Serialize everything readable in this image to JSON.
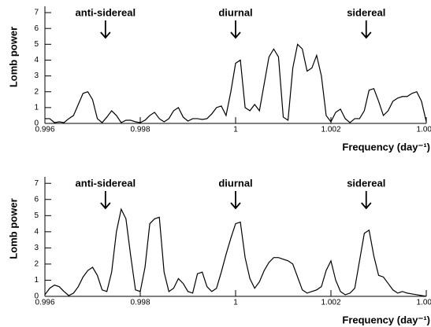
{
  "chart_data": [
    {
      "type": "line",
      "x_label": "Frequency (day⁻¹)",
      "y_label": "Lomb power",
      "color": "#000000",
      "annotations": [
        {
          "text": "anti-sidereal",
          "x": 0.99727
        },
        {
          "text": "diurnal",
          "x": 1
        },
        {
          "text": "sidereal",
          "x": 1.00274
        }
      ],
      "xlim": [
        0.996,
        1.004
      ],
      "xticks": [
        0.996,
        0.998,
        1,
        1.002,
        1.004
      ],
      "ylim": [
        0,
        7.4
      ],
      "yticks": [
        0,
        1,
        2,
        3,
        4,
        5,
        6,
        7
      ],
      "x": [
        0.996,
        0.9961,
        0.9962,
        0.9963,
        0.9964,
        0.9965,
        0.9966,
        0.9967,
        0.9968,
        0.9969,
        0.997,
        0.9971,
        0.9972,
        0.9973,
        0.9974,
        0.9975,
        0.9976,
        0.9977,
        0.9978,
        0.9979,
        0.998,
        0.9981,
        0.9982,
        0.9983,
        0.9984,
        0.9985,
        0.9986,
        0.9987,
        0.9988,
        0.9989,
        0.999,
        0.9991,
        0.9992,
        0.9993,
        0.9994,
        0.9995,
        0.9996,
        0.9997,
        0.9998,
        0.9999,
        1,
        1.0001,
        1.0002,
        1.0003,
        1.0004,
        1.0005,
        1.0006,
        1.0007,
        1.0008,
        1.0009,
        1.001,
        1.0011,
        1.0012,
        1.0013,
        1.0014,
        1.0015,
        1.0016,
        1.0017,
        1.0018,
        1.0019,
        1.002,
        1.0021,
        1.0022,
        1.0023,
        1.0024,
        1.0025,
        1.0026,
        1.0027,
        1.0028,
        1.0029,
        1.003,
        1.0031,
        1.0032,
        1.0033,
        1.0034,
        1.0035,
        1.0036,
        1.0037,
        1.0038,
        1.0039,
        1.004
      ],
      "values": [
        0.3,
        0.3,
        0.05,
        0.1,
        0.05,
        0.3,
        0.5,
        1.2,
        1.9,
        2.0,
        1.5,
        0.3,
        0.05,
        0.4,
        0.8,
        0.5,
        0.05,
        0.2,
        0.2,
        0.1,
        0.05,
        0.2,
        0.5,
        0.7,
        0.3,
        0.1,
        0.3,
        0.8,
        1.0,
        0.4,
        0.15,
        0.3,
        0.3,
        0.25,
        0.3,
        0.6,
        1.0,
        1.1,
        0.5,
        2.0,
        3.8,
        4.0,
        1.0,
        0.8,
        1.2,
        0.8,
        2.5,
        4.2,
        4.7,
        4.2,
        0.4,
        0.2,
        3.5,
        5.0,
        4.7,
        3.3,
        3.5,
        4.3,
        3.0,
        0.5,
        0.1,
        0.7,
        0.9,
        0.3,
        0.05,
        0.3,
        0.3,
        0.8,
        2.1,
        2.2,
        1.4,
        0.5,
        0.8,
        1.4,
        1.6,
        1.7,
        1.7,
        1.9,
        2.0,
        1.4,
        0.1
      ]
    },
    {
      "type": "line",
      "x_label": "Frequency (day⁻¹)",
      "y_label": "Lomb power",
      "color": "#000000",
      "annotations": [
        {
          "text": "anti-sidereal",
          "x": 0.99727
        },
        {
          "text": "diurnal",
          "x": 1
        },
        {
          "text": "sidereal",
          "x": 1.00274
        }
      ],
      "xlim": [
        0.996,
        1.004
      ],
      "xticks": [
        0.996,
        0.998,
        1,
        1.002,
        1.004
      ],
      "ylim": [
        0,
        7.4
      ],
      "yticks": [
        0,
        1,
        2,
        3,
        4,
        5,
        6,
        7
      ],
      "x": [
        0.996,
        0.9961,
        0.9962,
        0.9963,
        0.9964,
        0.9965,
        0.9966,
        0.9967,
        0.9968,
        0.9969,
        0.997,
        0.9971,
        0.9972,
        0.9973,
        0.9974,
        0.9975,
        0.9976,
        0.9977,
        0.9978,
        0.9979,
        0.998,
        0.9981,
        0.9982,
        0.9983,
        0.9984,
        0.9985,
        0.9986,
        0.9987,
        0.9988,
        0.9989,
        0.999,
        0.9991,
        0.9992,
        0.9993,
        0.9994,
        0.9995,
        0.9996,
        0.9997,
        0.9998,
        0.9999,
        1,
        1.0001,
        1.0002,
        1.0003,
        1.0004,
        1.0005,
        1.0006,
        1.0007,
        1.0008,
        1.0009,
        1.001,
        1.0011,
        1.0012,
        1.0013,
        1.0014,
        1.0015,
        1.0016,
        1.0017,
        1.0018,
        1.0019,
        1.002,
        1.0021,
        1.0022,
        1.0023,
        1.0024,
        1.0025,
        1.0026,
        1.0027,
        1.0028,
        1.0029,
        1.003,
        1.0031,
        1.0032,
        1.0033,
        1.0034,
        1.0035,
        1.0036,
        1.0037,
        1.0038,
        1.0039,
        1.004
      ],
      "values": [
        0.1,
        0.5,
        0.7,
        0.6,
        0.3,
        0.05,
        0.2,
        0.6,
        1.2,
        1.6,
        1.8,
        1.3,
        0.4,
        0.3,
        1.5,
        4.0,
        5.4,
        4.8,
        2.5,
        0.4,
        0.3,
        1.8,
        4.5,
        4.8,
        4.9,
        1.5,
        0.3,
        0.5,
        1.1,
        0.8,
        0.3,
        0.2,
        1.4,
        1.5,
        0.6,
        0.3,
        0.5,
        1.5,
        2.6,
        3.6,
        4.5,
        4.6,
        2.4,
        1.1,
        0.5,
        0.9,
        1.6,
        2.1,
        2.4,
        2.4,
        2.3,
        2.2,
        2.0,
        1.2,
        0.4,
        0.2,
        0.3,
        0.4,
        0.6,
        1.6,
        2.2,
        1.0,
        0.3,
        0.1,
        0.2,
        0.5,
        2.2,
        3.9,
        4.1,
        2.5,
        1.3,
        1.2,
        0.8,
        0.4,
        0.2,
        0.3,
        0.2,
        0.15,
        0.1,
        0.05,
        0.0
      ]
    }
  ]
}
